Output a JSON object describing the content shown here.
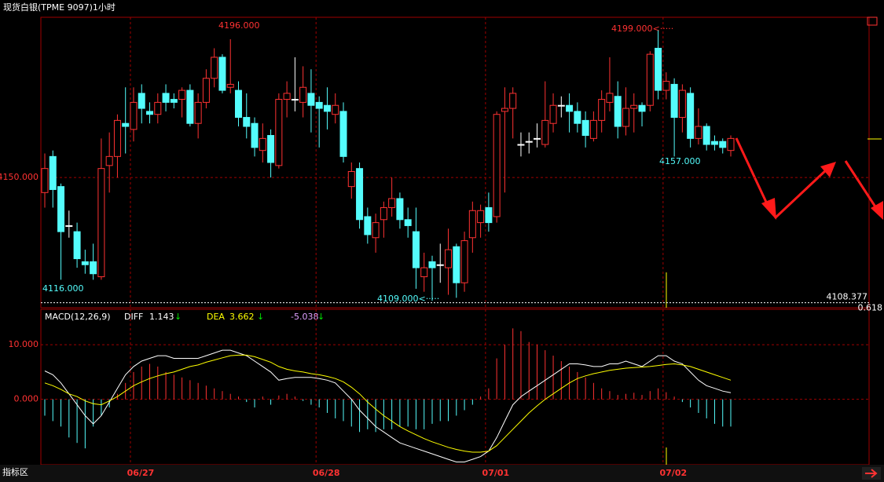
{
  "chart_data": [
    {
      "type": "candlestick",
      "title": "现货白银(TPME 9097)1小时",
      "categories": [
        null,
        null,
        null,
        null,
        null,
        null,
        null,
        null,
        null,
        null,
        null,
        "06/27",
        null,
        null,
        null,
        null,
        null,
        null,
        null,
        null,
        null,
        null,
        null,
        null,
        null,
        null,
        null,
        null,
        null,
        null,
        null,
        null,
        null,
        null,
        "06/28",
        null,
        null,
        null,
        null,
        null,
        null,
        null,
        null,
        null,
        null,
        null,
        null,
        null,
        null,
        null,
        null,
        null,
        null,
        null,
        null,
        "07/01",
        null,
        null,
        null,
        null,
        null,
        null,
        null,
        null,
        null,
        null,
        null,
        null,
        null,
        null,
        null,
        null,
        null,
        null,
        null,
        null,
        null,
        "07/02",
        null,
        null,
        null,
        null,
        null,
        null,
        null,
        null
      ],
      "open": [
        4145,
        4157,
        4147,
        4134,
        4132,
        4122,
        4122,
        4117,
        4154,
        4157,
        4168,
        4166,
        4178,
        4172,
        4171,
        4178,
        4176,
        4176,
        4179,
        4168,
        4175,
        4183,
        4190,
        4180,
        4179,
        4170,
        4168,
        4159,
        4164,
        4154,
        4176,
        4176,
        4175,
        4178,
        4175,
        4174,
        4171,
        4172,
        4147,
        4153,
        4137,
        4130,
        4136,
        4140,
        4143,
        4136,
        4132,
        4117,
        4122,
        4121,
        4120,
        4127,
        4115,
        4130,
        4135,
        4140,
        4137,
        4172,
        4173,
        4161,
        4162,
        4163,
        4161,
        4168,
        4174,
        4174,
        4172,
        4169,
        4163,
        4169,
        4175,
        4177,
        4167,
        4173,
        4174,
        4174,
        4193,
        4179,
        4181,
        4170,
        4178,
        4163,
        4167,
        4162,
        4162,
        4159
      ],
      "high": [
        4158,
        4159,
        4148,
        4139,
        4135,
        4126,
        4128,
        4163,
        4165,
        4171,
        4180,
        4180,
        4181,
        4175,
        4178,
        4181,
        4178,
        4180,
        4181,
        4178,
        4186,
        4193,
        4191,
        4196,
        4182,
        4178,
        4170,
        4168,
        4166,
        4178,
        4182,
        4190,
        4187,
        4186,
        4177,
        4180,
        4178,
        4175,
        4155,
        4155,
        4140,
        4138,
        4142,
        4150,
        4145,
        4140,
        4140,
        4125,
        4124,
        4128,
        4133,
        4128,
        4132,
        4142,
        4141,
        4145,
        4172,
        4180,
        4180,
        4165,
        4165,
        4168,
        4182,
        4178,
        4177,
        4178,
        4175,
        4172,
        4172,
        4179,
        4190,
        4182,
        4180,
        4178,
        4175,
        4192,
        4199,
        4185,
        4183,
        4181,
        4180,
        4173,
        4168,
        4164,
        4163,
        4164
      ],
      "low": [
        4140,
        4140,
        4116,
        4130,
        4120,
        4118,
        4116,
        4116,
        4145,
        4150,
        4158,
        4162,
        4168,
        4168,
        4168,
        4172,
        4173,
        4170,
        4167,
        4163,
        4173,
        4180,
        4178,
        4178,
        4167,
        4163,
        4157,
        4155,
        4150,
        4153,
        4170,
        4172,
        4170,
        4165,
        4160,
        4166,
        4168,
        4155,
        4143,
        4133,
        4128,
        4125,
        4130,
        4137,
        4133,
        4130,
        4113,
        4112,
        4109,
        4115,
        4111,
        4110,
        4112,
        4125,
        4130,
        4132,
        4135,
        4145,
        4163,
        4157,
        4158,
        4160,
        4160,
        4165,
        4170,
        4165,
        4165,
        4160,
        4162,
        4165,
        4172,
        4163,
        4164,
        4165,
        4167,
        4172,
        4176,
        4176,
        4157,
        4165,
        4160,
        4161,
        4159,
        4159,
        4158,
        4157
      ],
      "close": [
        4153,
        4146,
        4132,
        4134,
        4123,
        4121,
        4118,
        4153,
        4157,
        4169,
        4167,
        4175,
        4173,
        4171,
        4175,
        4175,
        4175,
        4179,
        4168,
        4175,
        4183,
        4190,
        4179,
        4181,
        4170,
        4167,
        4160,
        4163,
        4155,
        4176,
        4178,
        4176,
        4180,
        4174,
        4173,
        4172,
        4174,
        4157,
        4152,
        4136,
        4131,
        4135,
        4140,
        4143,
        4136,
        4134,
        4120,
        4120,
        4120,
        4121,
        4126,
        4115,
        4129,
        4139,
        4139,
        4135,
        4171,
        4173,
        4178,
        4161,
        4162,
        4163,
        4169,
        4174,
        4174,
        4172,
        4168,
        4164,
        4169,
        4176,
        4178,
        4167,
        4173,
        4174,
        4172,
        4191,
        4179,
        4182,
        4170,
        4179,
        4163,
        4167,
        4161,
        4161,
        4160,
        4163
      ],
      "up_color": "#ff3232",
      "down_color": "#54fcfc",
      "ylim": [
        4106.7,
        4203.3
      ],
      "yticks": [
        {
          "value": 4150,
          "label": "4150.000"
        }
      ],
      "grid": true,
      "annotations": [
        "4196.000",
        "4199.000<·····",
        "4116.000",
        "4109.000<·····",
        "4157.000"
      ],
      "level": 4108.377,
      "level_ratio": 0.618
    },
    {
      "type": "macd",
      "title": "MACD(12,26,9)",
      "series": [
        {
          "name": "DIFF",
          "color": "#ffffff",
          "readout": 1.143,
          "trend": "↓",
          "values": [
            5.2,
            4.5,
            3,
            1,
            -1,
            -3,
            -4.5,
            -3,
            -0.5,
            2,
            4.5,
            6,
            7,
            7.5,
            8,
            8,
            7.5,
            7.5,
            7.5,
            7.5,
            8,
            8.5,
            9,
            9,
            8.5,
            8,
            7,
            6,
            5,
            3.5,
            3.8,
            4,
            4,
            4,
            3.8,
            3.5,
            3,
            1.5,
            0,
            -2,
            -3.5,
            -5,
            -6,
            -7,
            -8,
            -8.5,
            -9,
            -9.5,
            -10,
            -10.5,
            -11,
            -11.5,
            -11.5,
            -11,
            -10.5,
            -9.5,
            -7,
            -4,
            -1,
            0.5,
            1.5,
            2.5,
            3.5,
            4.5,
            5.5,
            6.5,
            6.5,
            6.3,
            6,
            6,
            6.5,
            6.5,
            7,
            6.5,
            6,
            7,
            8,
            8,
            7,
            6.5,
            5,
            3.5,
            2.5,
            2,
            1.5,
            1.2
          ]
        },
        {
          "name": "DEA",
          "color": "#ffff00",
          "readout": 3.662,
          "trend": "↓",
          "values": [
            3,
            2.5,
            1.8,
            1,
            0.5,
            -0.3,
            -0.8,
            -1,
            -0.3,
            0.5,
            1.5,
            2.5,
            3.2,
            3.8,
            4.3,
            4.7,
            5,
            5.5,
            6,
            6.3,
            6.8,
            7.2,
            7.6,
            8,
            8.1,
            8.1,
            7.8,
            7.3,
            6.8,
            6,
            5.5,
            5.2,
            5,
            4.7,
            4.5,
            4.2,
            3.8,
            3.2,
            2.2,
            1,
            -0.5,
            -1.8,
            -3,
            -4,
            -5,
            -5.8,
            -6.5,
            -7.2,
            -7.8,
            -8.3,
            -8.8,
            -9.2,
            -9.5,
            -9.7,
            -9.7,
            -9.5,
            -8.5,
            -7,
            -5.5,
            -4,
            -2.5,
            -1.2,
            0,
            1,
            2,
            3,
            3.8,
            4.3,
            4.7,
            5,
            5.3,
            5.5,
            5.7,
            5.8,
            5.9,
            6,
            6.2,
            6.4,
            6.5,
            6.3,
            6,
            5.5,
            5,
            4.5,
            4,
            3.5
          ]
        }
      ],
      "histogram": {
        "readout": -5.038,
        "trend": "↓",
        "up_color": "#ff3232",
        "down_color": "#54fcfc",
        "values": [
          -3,
          -4,
          -5,
          -7,
          -8,
          -9,
          -5,
          -3,
          -1.5,
          1,
          3,
          5,
          6,
          6.5,
          6,
          5,
          4.5,
          4,
          3.5,
          3,
          2.5,
          2,
          1.5,
          1,
          0.5,
          -0.5,
          -1.5,
          0.5,
          -1,
          0.7,
          1,
          0.5,
          -0.3,
          -1,
          -1.5,
          -2.5,
          -3.5,
          -4,
          -5,
          -6,
          -5.5,
          -6,
          -5.5,
          -5.5,
          -5,
          -5,
          -5.5,
          -5.5,
          -4.5,
          -4,
          -4,
          -3,
          -2,
          -1,
          0.5,
          2,
          7.5,
          10,
          13,
          12.5,
          10.5,
          10,
          9,
          8,
          7,
          6,
          5,
          4,
          3,
          2,
          1.5,
          0.8,
          1,
          1.2,
          0.8,
          1.5,
          2,
          1.3,
          0.5,
          -0.5,
          -1.5,
          -2.5,
          -3.5,
          -4.5,
          -5,
          -5
        ]
      },
      "ylim": [
        -12,
        16.5
      ],
      "yticks": [
        {
          "value": 10,
          "label": "10.000"
        },
        {
          "value": 0,
          "label": "0.000"
        }
      ],
      "grid": true
    }
  ],
  "indicator_tab": "指标区"
}
